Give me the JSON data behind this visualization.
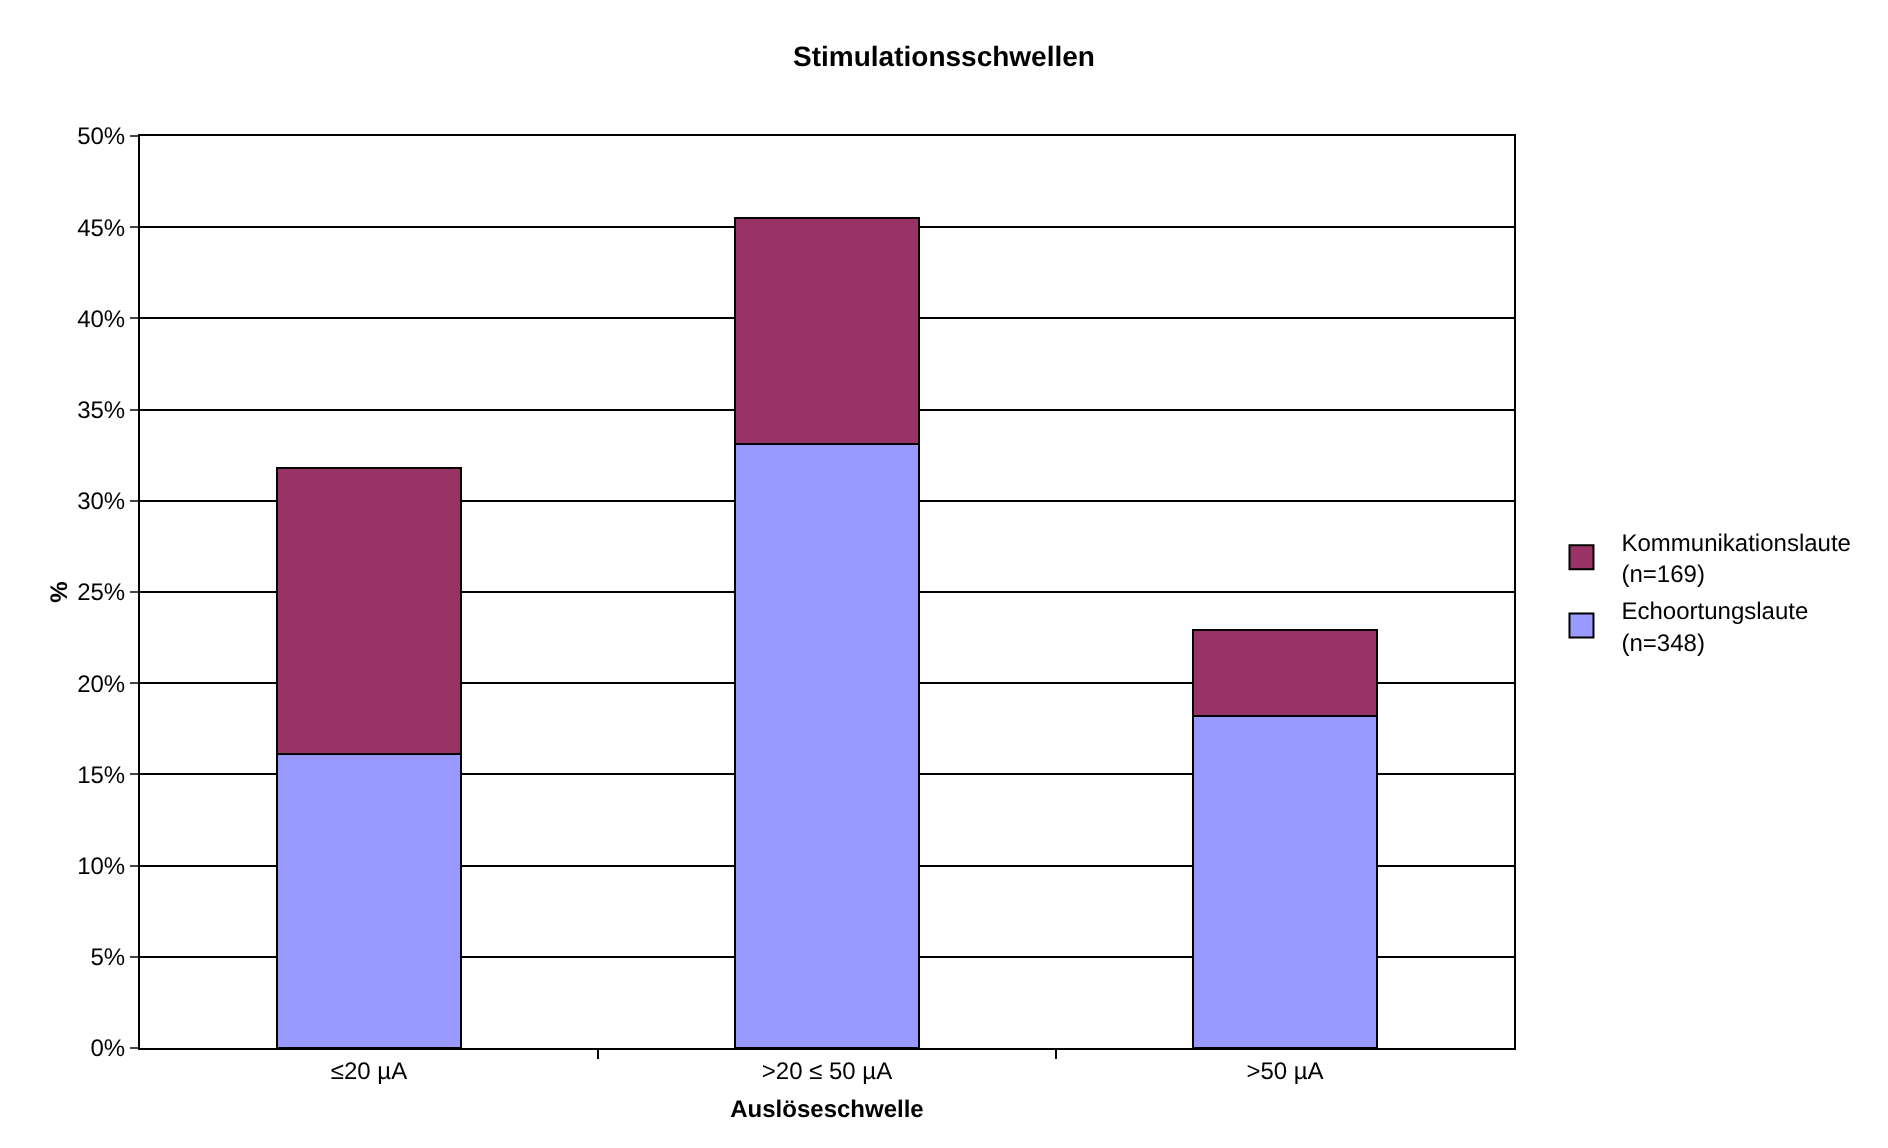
{
  "chart_data": {
    "type": "bar",
    "title": "Stimulationsschwellen",
    "xlabel": "Auslöseschwelle",
    "ylabel": "%",
    "categories": [
      "≤20 µA",
      ">20 ≤ 50 µA",
      ">50 µA"
    ],
    "stacked": true,
    "series": [
      {
        "name": "Echoortungslaute\n(n=348)",
        "color": "#9999ff",
        "values": [
          16.1,
          33.1,
          18.2
        ]
      },
      {
        "name": "Kommunikationslaute\n(n=169)",
        "color": "#993366",
        "values": [
          15.7,
          12.4,
          4.7
        ]
      }
    ],
    "ylim": [
      0,
      50
    ],
    "yticks": [
      {
        "value": 0,
        "label": "0%"
      },
      {
        "value": 5,
        "label": "5%"
      },
      {
        "value": 10,
        "label": "10%"
      },
      {
        "value": 15,
        "label": "15%"
      },
      {
        "value": 20,
        "label": "20%"
      },
      {
        "value": 25,
        "label": "25%"
      },
      {
        "value": 30,
        "label": "30%"
      },
      {
        "value": 35,
        "label": "35%"
      },
      {
        "value": 40,
        "label": "40%"
      },
      {
        "value": 45,
        "label": "45%"
      },
      {
        "value": 50,
        "label": "50%"
      }
    ],
    "grid": "y",
    "legend": "right"
  }
}
